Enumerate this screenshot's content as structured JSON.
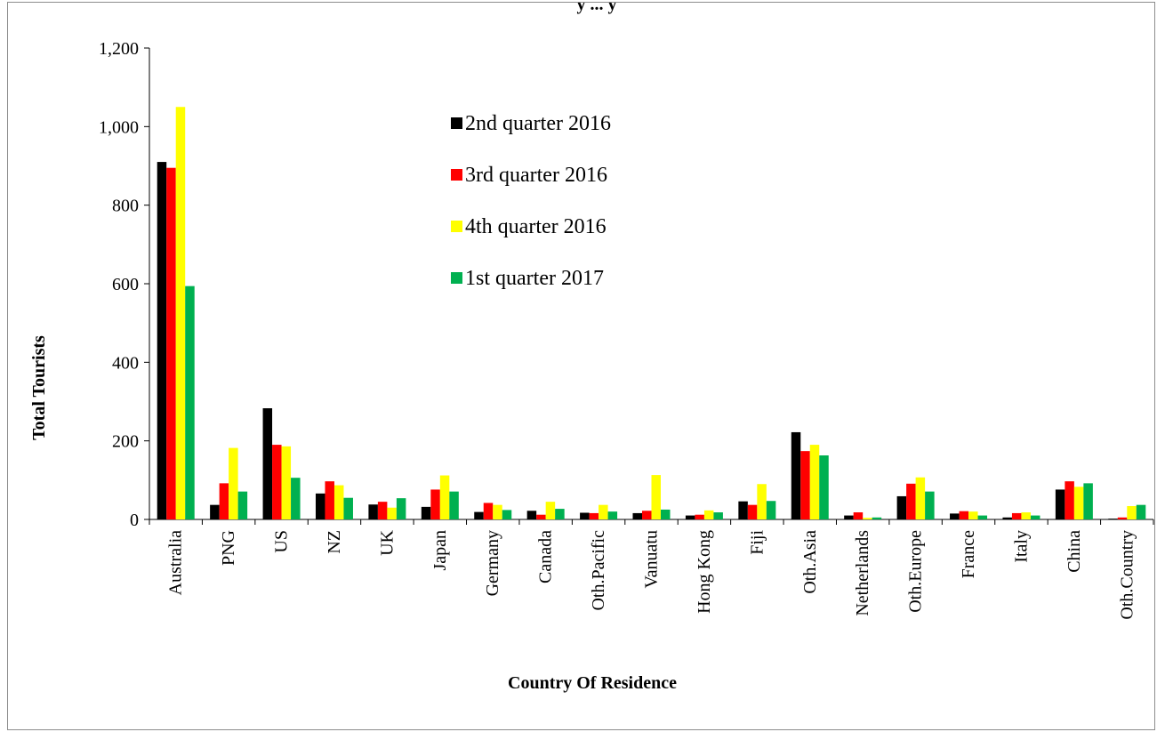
{
  "chart_data": {
    "type": "bar",
    "title": "",
    "title_partial": "y ... y",
    "xlabel": "Country Of  Residence",
    "ylabel": "Total Tourists",
    "ylim": [
      0,
      1200
    ],
    "yticks": [
      0,
      200,
      400,
      600,
      800,
      1000,
      1200
    ],
    "ytick_labels": [
      "0",
      "200",
      "400",
      "600",
      "800",
      "1,000",
      "1,200"
    ],
    "grid": false,
    "legend_position": "top-center",
    "categories": [
      "Australia",
      "PNG",
      "US",
      "NZ",
      "UK",
      "Japan",
      "Germany",
      "Canada",
      "Oth.Pacific",
      "Vanuatu",
      "Hong Kong",
      "Fiji",
      "Oth.Asia",
      "Netherlands",
      "Oth.Europe",
      "France",
      "Italy",
      "China",
      "Oth.Country"
    ],
    "series": [
      {
        "name": "2nd quarter 2016",
        "color": "#000000",
        "values": [
          910,
          37,
          283,
          66,
          38,
          32,
          19,
          22,
          17,
          16,
          10,
          46,
          222,
          10,
          59,
          15,
          5,
          76,
          2
        ]
      },
      {
        "name": "3rd quarter 2016",
        "color": "#ff0000",
        "values": [
          895,
          92,
          190,
          97,
          45,
          76,
          42,
          12,
          16,
          22,
          12,
          37,
          174,
          18,
          91,
          21,
          16,
          97,
          5
        ]
      },
      {
        "name": "4th quarter 2016",
        "color": "#ffff00",
        "values": [
          1050,
          182,
          186,
          87,
          30,
          112,
          37,
          45,
          37,
          113,
          23,
          90,
          190,
          4,
          107,
          20,
          18,
          83,
          34
        ]
      },
      {
        "name": "1st quarter 2017",
        "color": "#00b050",
        "values": [
          594,
          71,
          106,
          55,
          54,
          71,
          24,
          27,
          20,
          25,
          18,
          47,
          163,
          5,
          71,
          10,
          10,
          92,
          37
        ]
      }
    ]
  }
}
